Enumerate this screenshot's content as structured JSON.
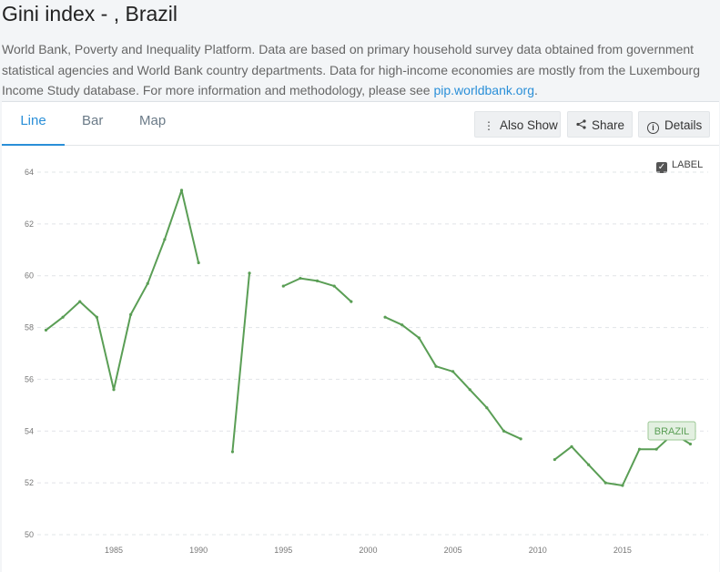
{
  "header": {
    "title": "Gini index - , Brazil",
    "description": "World Bank, Poverty and Inequality Platform. Data are based on primary household survey data obtained from government statistical agencies and World Bank country departments. Data for high-income economies are mostly from the Luxembourg Income Study database. For more information and methodology, please see ",
    "link_text": "pip.worldbank.org",
    "link_suffix": "."
  },
  "tabs": [
    {
      "label": "Line",
      "active": true
    },
    {
      "label": "Bar",
      "active": false
    },
    {
      "label": "Map",
      "active": false
    }
  ],
  "toolbar": {
    "also_show": "Also Show",
    "share": "Share",
    "details": "Details",
    "label_toggle": "LABEL",
    "label_checked": true
  },
  "colors": {
    "line": "#5a9e55",
    "accent": "#2a8fd8"
  },
  "chart_data": {
    "type": "line",
    "title": "",
    "xlabel": "",
    "ylabel": "",
    "xlim": [
      1981,
      2019
    ],
    "ylim": [
      50,
      64
    ],
    "x_ticks": [
      1985,
      1990,
      1995,
      2000,
      2005,
      2010,
      2015
    ],
    "y_ticks": [
      50,
      52,
      54,
      56,
      58,
      60,
      62,
      64
    ],
    "grid": true,
    "series": [
      {
        "name": "BRAZIL",
        "points": [
          [
            1981,
            57.9
          ],
          [
            1982,
            58.4
          ],
          [
            1983,
            59.0
          ],
          [
            1984,
            58.4
          ],
          [
            1985,
            55.6
          ],
          [
            1986,
            58.5
          ],
          [
            1987,
            59.7
          ],
          [
            1988,
            61.4
          ],
          [
            1989,
            63.3
          ],
          [
            1990,
            60.5
          ],
          [
            1991,
            null
          ],
          [
            1992,
            53.2
          ],
          [
            1993,
            60.1
          ],
          [
            1994,
            null
          ],
          [
            1995,
            59.6
          ],
          [
            1996,
            59.9
          ],
          [
            1997,
            59.8
          ],
          [
            1998,
            59.6
          ],
          [
            1999,
            59.0
          ],
          [
            2000,
            null
          ],
          [
            2001,
            58.4
          ],
          [
            2002,
            58.1
          ],
          [
            2003,
            57.6
          ],
          [
            2004,
            56.5
          ],
          [
            2005,
            56.3
          ],
          [
            2006,
            55.6
          ],
          [
            2007,
            54.9
          ],
          [
            2008,
            54.0
          ],
          [
            2009,
            53.7
          ],
          [
            2010,
            null
          ],
          [
            2011,
            52.9
          ],
          [
            2012,
            53.4
          ],
          [
            2013,
            52.7
          ],
          [
            2014,
            52.0
          ],
          [
            2015,
            51.9
          ],
          [
            2016,
            53.3
          ],
          [
            2017,
            53.3
          ],
          [
            2018,
            53.9
          ],
          [
            2019,
            53.5
          ]
        ]
      }
    ]
  }
}
